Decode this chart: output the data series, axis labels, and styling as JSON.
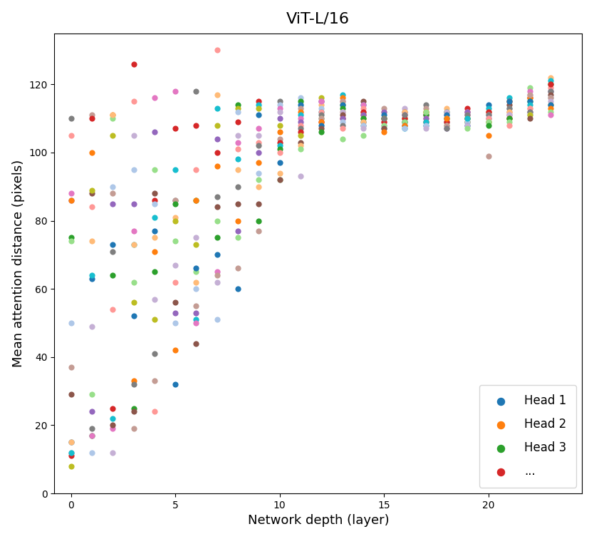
{
  "title": "ViT-L/16",
  "xlabel": "Network depth (layer)",
  "ylabel": "Mean attention distance (pixels)",
  "ylim": [
    0,
    135
  ],
  "xlim": [
    -0.8,
    24.5
  ],
  "num_layers": 24,
  "num_heads": 16,
  "legend_labels": [
    "Head 1",
    "Head 2",
    "Head 3",
    "..."
  ],
  "legend_colors": [
    "#1f77b4",
    "#ff7f0e",
    "#2ca02c",
    "#d62728"
  ],
  "head_colors": [
    "#1f77b4",
    "#ff7f0e",
    "#2ca02c",
    "#d62728",
    "#9467bd",
    "#8c564b",
    "#e377c2",
    "#7f7f7f",
    "#bcbd22",
    "#17becf",
    "#aec7e8",
    "#ffbb78",
    "#98df8a",
    "#ff9896",
    "#c5b0d5",
    "#c49c94"
  ],
  "raw_data": {
    "0": [
      110,
      105,
      86,
      86,
      88,
      75,
      74,
      37,
      29,
      15,
      15,
      12,
      11,
      12,
      8,
      50
    ],
    "1": [
      111,
      100,
      88,
      84,
      89,
      74,
      63,
      17,
      19,
      17,
      24,
      64,
      49,
      29,
      12,
      110
    ],
    "2": [
      111,
      105,
      71,
      85,
      90,
      73,
      54,
      64,
      22,
      25,
      19,
      20,
      12,
      110,
      111,
      88
    ],
    "3": [
      115,
      105,
      126,
      95,
      85,
      77,
      73,
      73,
      62,
      56,
      52,
      33,
      32,
      25,
      24,
      19
    ],
    "4": [
      116,
      106,
      95,
      88,
      86,
      85,
      81,
      77,
      71,
      65,
      57,
      51,
      41,
      33,
      24,
      75
    ],
    "5": [
      118,
      107,
      95,
      86,
      86,
      85,
      81,
      74,
      67,
      62,
      56,
      53,
      50,
      42,
      32,
      80
    ],
    "6": [
      118,
      108,
      95,
      86,
      86,
      75,
      73,
      65,
      62,
      60,
      55,
      53,
      51,
      50,
      44,
      66
    ],
    "7": [
      130,
      117,
      113,
      108,
      104,
      100,
      96,
      87,
      84,
      80,
      75,
      70,
      65,
      62,
      51,
      64
    ],
    "8": [
      114,
      113,
      112,
      109,
      105,
      103,
      101,
      98,
      95,
      90,
      85,
      80,
      75,
      66,
      60,
      77
    ],
    "9": [
      115,
      114,
      113,
      111,
      107,
      105,
      103,
      102,
      100,
      97,
      94,
      90,
      85,
      80,
      77,
      92
    ],
    "10": [
      115,
      114,
      113,
      112,
      110,
      108,
      106,
      104,
      103,
      102,
      101,
      100,
      97,
      94,
      92,
      92
    ],
    "11": [
      116,
      115,
      114,
      113,
      112,
      111,
      110,
      109,
      108,
      107,
      106,
      105,
      103,
      102,
      101,
      93
    ],
    "12": [
      116,
      115,
      115,
      114,
      113,
      112,
      112,
      111,
      110,
      110,
      109,
      109,
      108,
      107,
      106,
      115
    ],
    "13": [
      117,
      116,
      115,
      115,
      114,
      114,
      113,
      112,
      112,
      111,
      110,
      110,
      109,
      108,
      107,
      104
    ],
    "14": [
      115,
      114,
      114,
      113,
      112,
      112,
      111,
      111,
      110,
      110,
      109,
      109,
      108,
      108,
      107,
      105
    ],
    "15": [
      113,
      112,
      112,
      111,
      110,
      110,
      110,
      109,
      109,
      108,
      108,
      107,
      107,
      107,
      106,
      110
    ],
    "16": [
      113,
      112,
      112,
      111,
      111,
      110,
      110,
      110,
      109,
      109,
      109,
      108,
      108,
      107,
      107,
      111
    ],
    "17": [
      114,
      113,
      112,
      112,
      111,
      111,
      111,
      110,
      110,
      109,
      109,
      109,
      108,
      108,
      107,
      112
    ],
    "18": [
      113,
      112,
      112,
      111,
      111,
      110,
      110,
      110,
      109,
      109,
      109,
      108,
      108,
      107,
      107,
      110
    ],
    "19": [
      113,
      112,
      112,
      112,
      111,
      111,
      110,
      110,
      110,
      109,
      109,
      109,
      108,
      108,
      107,
      110
    ],
    "20": [
      114,
      113,
      112,
      112,
      112,
      111,
      111,
      110,
      110,
      110,
      109,
      109,
      109,
      108,
      105,
      99
    ],
    "21": [
      116,
      115,
      115,
      114,
      113,
      113,
      112,
      112,
      111,
      111,
      110,
      110,
      110,
      109,
      108,
      115
    ],
    "22": [
      119,
      118,
      117,
      116,
      116,
      115,
      115,
      114,
      113,
      113,
      112,
      112,
      111,
      111,
      110,
      117
    ],
    "23": [
      122,
      121,
      120,
      119,
      118,
      118,
      117,
      116,
      116,
      115,
      114,
      114,
      113,
      112,
      111,
      120
    ]
  },
  "xticks": [
    0,
    5,
    10,
    15,
    20
  ],
  "yticks": [
    0,
    20,
    40,
    60,
    80,
    100,
    120
  ],
  "marker_size": 35,
  "title_fontsize": 16,
  "axis_label_fontsize": 13,
  "legend_fontsize": 12
}
